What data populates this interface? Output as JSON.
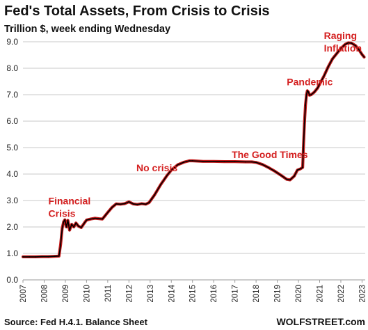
{
  "title": "Fed's Total Assets, From Crisis to Crisis",
  "subtitle": "Trillion $, week ending Wednesday",
  "source": "Source: Fed H.4.1. Balance Sheet",
  "brand": "WOLFSTREET.com",
  "colors": {
    "line": "#000000",
    "line_glow": "#c41a1a",
    "annotation": "#d42020",
    "grid": "#c8c8c8"
  },
  "chart_data": {
    "type": "line",
    "title": "Fed's Total Assets, From Crisis to Crisis",
    "subtitle": "Trillion $, week ending Wednesday",
    "xlabel": "",
    "ylabel": "",
    "xlim": [
      2007.0,
      2023.15
    ],
    "ylim": [
      0.0,
      9.0
    ],
    "grid": "horizontal",
    "yticks": [
      "0.0",
      "1.0",
      "2.0",
      "3.0",
      "4.0",
      "5.0",
      "6.0",
      "7.0",
      "8.0",
      "9.0"
    ],
    "xticks": [
      "2007",
      "2008",
      "2009",
      "2010",
      "2011",
      "2012",
      "2013",
      "2014",
      "2015",
      "2016",
      "2017",
      "2018",
      "2019",
      "2020",
      "2021",
      "2022",
      "2023"
    ],
    "annotations": [
      {
        "lines": [
          "Financial",
          "Crisis"
        ],
        "x": 2008.2,
        "y": 2.85
      },
      {
        "lines": [
          "No crisis"
        ],
        "x": 2012.35,
        "y": 4.1
      },
      {
        "lines": [
          "The Good Times"
        ],
        "x": 2016.85,
        "y": 4.6
      },
      {
        "lines": [
          "Pandemic"
        ],
        "x": 2019.45,
        "y": 7.35
      },
      {
        "lines": [
          "Raging",
          "Inflation"
        ],
        "x": 2021.2,
        "y": 9.1
      }
    ],
    "series": [
      {
        "x": [
          2007.0,
          2007.3,
          2007.6,
          2007.9,
          2008.2,
          2008.5,
          2008.7,
          2008.78,
          2008.85,
          2008.92,
          2008.98,
          2009.05,
          2009.12,
          2009.2,
          2009.3,
          2009.4,
          2009.5,
          2009.62,
          2009.75,
          2009.9,
          2010.0,
          2010.2,
          2010.4,
          2010.6,
          2010.75,
          2010.9,
          2011.0,
          2011.2,
          2011.4,
          2011.6,
          2011.8,
          2012.0,
          2012.2,
          2012.4,
          2012.6,
          2012.8,
          2012.95,
          2013.2,
          2013.5,
          2013.8,
          2014.0,
          2014.3,
          2014.6,
          2014.85,
          2015.0,
          2015.5,
          2016.0,
          2016.5,
          2017.0,
          2017.5,
          2017.8,
          2018.0,
          2018.3,
          2018.6,
          2018.9,
          2019.2,
          2019.45,
          2019.6,
          2019.8,
          2019.95,
          2020.1,
          2020.2,
          2020.23,
          2020.28,
          2020.33,
          2020.38,
          2020.42,
          2020.47,
          2020.52,
          2020.6,
          2020.75,
          2020.9,
          2021.0,
          2021.2,
          2021.4,
          2021.6,
          2021.8,
          2022.0,
          2022.2,
          2022.35,
          2022.5,
          2022.7,
          2022.85,
          2023.0,
          2023.1
        ],
        "values": [
          0.87,
          0.87,
          0.87,
          0.88,
          0.88,
          0.89,
          0.9,
          1.35,
          1.95,
          2.2,
          2.27,
          2.0,
          2.25,
          1.88,
          2.1,
          2.0,
          2.15,
          2.03,
          1.98,
          2.15,
          2.26,
          2.3,
          2.33,
          2.31,
          2.3,
          2.45,
          2.55,
          2.74,
          2.87,
          2.86,
          2.88,
          2.95,
          2.87,
          2.85,
          2.88,
          2.86,
          2.92,
          3.2,
          3.6,
          3.95,
          4.15,
          4.35,
          4.45,
          4.5,
          4.5,
          4.48,
          4.48,
          4.47,
          4.47,
          4.46,
          4.46,
          4.44,
          4.36,
          4.24,
          4.1,
          3.94,
          3.8,
          3.78,
          3.92,
          4.15,
          4.2,
          4.25,
          4.9,
          5.9,
          6.6,
          7.0,
          7.15,
          7.1,
          6.98,
          7.0,
          7.1,
          7.25,
          7.4,
          7.7,
          8.05,
          8.35,
          8.55,
          8.75,
          8.9,
          8.96,
          8.95,
          8.85,
          8.7,
          8.52,
          8.42
        ]
      }
    ]
  }
}
